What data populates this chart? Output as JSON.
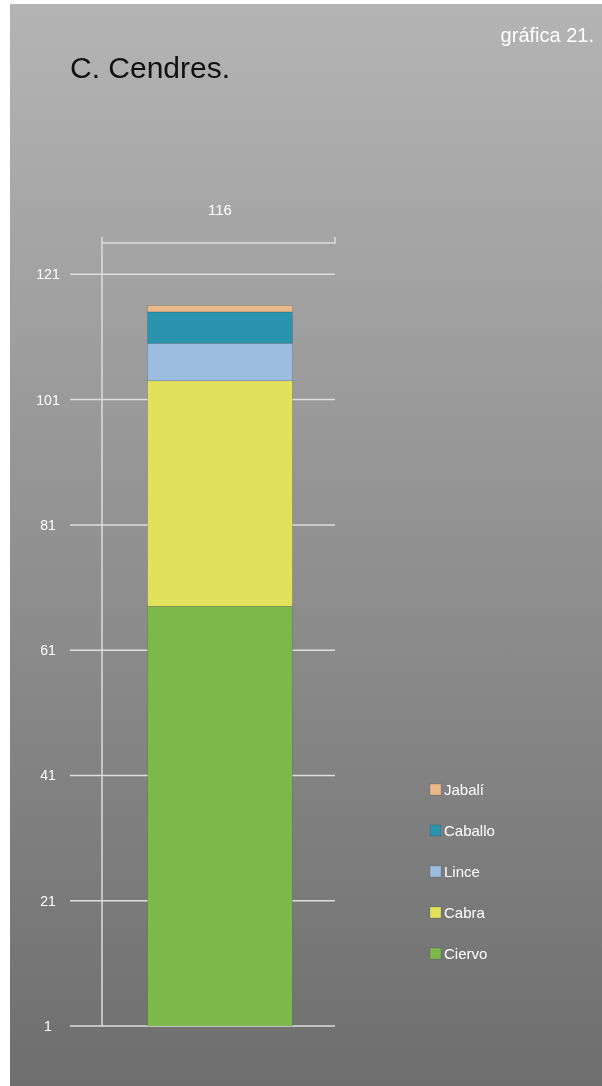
{
  "chart_data": {
    "type": "bar",
    "title": "C. Cendres.",
    "annotations": [
      "gráfica 21."
    ],
    "categories": [
      "116"
    ],
    "stacked": true,
    "series": [
      {
        "name": "Ciervo",
        "color": "#7cb94a",
        "values": [
          68
        ]
      },
      {
        "name": "Cabra",
        "color": "#e2e15c",
        "values": [
          36
        ]
      },
      {
        "name": "Lince",
        "color": "#9cbde0",
        "values": [
          6
        ]
      },
      {
        "name": "Caballo",
        "color": "#2a93ad",
        "values": [
          5
        ]
      },
      {
        "name": "Jabalí",
        "color": "#e9b98a",
        "values": [
          1
        ]
      }
    ],
    "ylim": [
      1,
      126
    ],
    "yticks": [
      1,
      21,
      41,
      61,
      81,
      101,
      121
    ],
    "grid": "y",
    "legend": "bottom right"
  }
}
